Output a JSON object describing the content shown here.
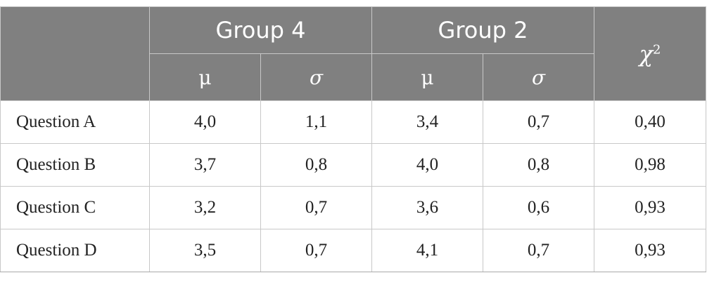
{
  "table": {
    "header": {
      "corner": "",
      "group_a": "Group 4",
      "group_b": "Group 2",
      "chi_symbol": "χ",
      "chi_exponent": "2",
      "mu": "μ",
      "sigma": "σ"
    },
    "rows": [
      {
        "label": "Question A",
        "g4_mu": "4,0",
        "g4_sigma": "1,1",
        "g2_mu": "3,4",
        "g2_sigma": "0,7",
        "chi2": "0,40"
      },
      {
        "label": "Question B",
        "g4_mu": "3,7",
        "g4_sigma": "0,8",
        "g2_mu": "4,0",
        "g2_sigma": "0,8",
        "chi2": "0,98"
      },
      {
        "label": "Question C",
        "g4_mu": "3,2",
        "g4_sigma": "0,7",
        "g2_mu": "3,6",
        "g2_sigma": "0,6",
        "chi2": "0,93"
      },
      {
        "label": "Question D",
        "g4_mu": "3,5",
        "g4_sigma": "0,7",
        "g2_mu": "4,1",
        "g2_sigma": "0,7",
        "chi2": "0,93"
      }
    ],
    "colors": {
      "header_bg": "#808080",
      "header_text": "#ffffff",
      "grid": "#c8c8c8",
      "body_text": "#222222"
    }
  }
}
